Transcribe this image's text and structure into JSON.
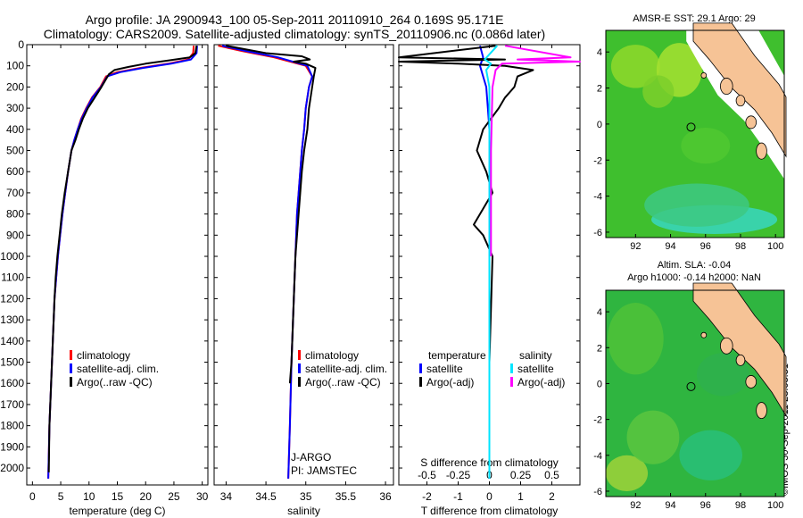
{
  "header": {
    "line1": "Argo profile: JA 2900943_100 05-Sep-2011 20110910_264 0.169S 95.171E",
    "line2": "Climatology: CARS2009. Satellite-adjusted climatology: synTS_20110906.nc (0.086d later)"
  },
  "colors": {
    "climatology": "#ff0000",
    "satellite": "#0000ff",
    "argo": "#000000",
    "salinity_satellite": "#00e5ff",
    "salinity_argo": "#ff00ff",
    "land": "#f6c396"
  },
  "chart_data": [
    {
      "type": "line",
      "name": "temperature-profile",
      "xlabel": "temperature (deg C)",
      "ylabel": "",
      "xlim": [
        -1,
        31
      ],
      "ylim": [
        2080,
        0
      ],
      "xticks": [
        0,
        5,
        10,
        15,
        20,
        25,
        30
      ],
      "yticks": [
        0,
        100,
        200,
        300,
        400,
        500,
        600,
        700,
        800,
        900,
        1000,
        1100,
        1200,
        1300,
        1400,
        1500,
        1600,
        1700,
        1800,
        1900,
        2000
      ],
      "legend": [
        "climatology",
        "satellite-adj. clim.",
        "Argo(..raw -QC)"
      ],
      "legend_position": "lower-center",
      "series": [
        {
          "name": "climatology",
          "x": [
            28.5,
            28.4,
            27.5,
            24,
            19,
            15,
            13,
            12,
            10.5,
            9.5,
            8.6,
            8,
            7.4,
            6.9,
            6.3,
            5.8,
            5.3,
            4.9,
            4.5,
            4.2,
            3.9,
            3.6,
            3.3,
            3.0,
            2.8
          ],
          "y": [
            5,
            40,
            70,
            90,
            110,
            130,
            150,
            200,
            250,
            300,
            350,
            400,
            450,
            500,
            600,
            700,
            800,
            900,
            1000,
            1100,
            1200,
            1400,
            1600,
            1800,
            2050
          ]
        },
        {
          "name": "satellite-adj. clim.",
          "x": [
            29.1,
            29,
            28,
            24.5,
            19.5,
            15.5,
            13.2,
            12.1,
            10.6,
            9.6,
            8.7,
            8,
            7.4,
            6.9,
            6.3,
            5.8,
            5.3,
            4.9,
            4.5,
            4.2,
            3.9,
            3.6,
            3.3,
            3.0,
            2.8
          ],
          "y": [
            5,
            40,
            70,
            90,
            110,
            130,
            150,
            200,
            250,
            300,
            350,
            400,
            450,
            500,
            600,
            700,
            800,
            900,
            1000,
            1100,
            1200,
            1400,
            1600,
            1800,
            2050
          ]
        },
        {
          "name": "Argo(..raw -QC)",
          "x": [
            29,
            28.8,
            27.8,
            24,
            20,
            17,
            14.5,
            13.5,
            12.2,
            11,
            9.8,
            8.9,
            8.2,
            7.6,
            6.9,
            6.3,
            5.7,
            5.2,
            4.8,
            4.4,
            4.1,
            3.9,
            3.6,
            3.3,
            3.0,
            2.9
          ],
          "y": [
            5,
            40,
            60,
            75,
            90,
            105,
            120,
            140,
            200,
            250,
            300,
            350,
            400,
            450,
            500,
            600,
            700,
            800,
            900,
            1000,
            1100,
            1200,
            1400,
            1600,
            1800,
            2020
          ]
        }
      ]
    },
    {
      "type": "line",
      "name": "salinity-profile",
      "xlabel": "salinity",
      "ylabel": "",
      "xlim": [
        33.85,
        36.1
      ],
      "ylim": [
        2080,
        0
      ],
      "xticks": [
        34,
        34.5,
        35,
        35.5,
        36
      ],
      "legend": [
        "climatology",
        "satellite-adj. clim.",
        "Argo(..raw -QC)"
      ],
      "legend_position": "lower-center",
      "annotations": [
        "J-ARGO",
        "PI: JAMSTEC"
      ],
      "series": [
        {
          "name": "climatology",
          "x": [
            33.9,
            34.2,
            34.6,
            35.0,
            35.08,
            35.04,
            35.0,
            34.98,
            34.95,
            34.93,
            34.91,
            34.89,
            34.87,
            34.85,
            34.82,
            34.8,
            34.78
          ],
          "y": [
            5,
            30,
            60,
            100,
            150,
            200,
            300,
            400,
            500,
            600,
            700,
            800,
            1000,
            1200,
            1500,
            1800,
            2050
          ]
        },
        {
          "name": "satellite-adj. clim.",
          "x": [
            33.95,
            34.25,
            34.65,
            35.02,
            35.08,
            35.04,
            35.0,
            34.98,
            34.95,
            34.93,
            34.91,
            34.89,
            34.87,
            34.85,
            34.82,
            34.8,
            34.78
          ],
          "y": [
            5,
            30,
            60,
            100,
            150,
            200,
            300,
            400,
            500,
            600,
            700,
            800,
            1000,
            1200,
            1500,
            1800,
            2050
          ]
        },
        {
          "name": "Argo(..raw -QC)",
          "x": [
            34.0,
            34.5,
            34.95,
            35.05,
            34.85,
            35.0,
            35.12,
            35.1,
            35.08,
            35.04,
            35.02,
            34.98,
            34.95,
            34.93,
            34.91,
            34.89,
            34.87,
            34.85,
            34.82,
            34.8
          ],
          "y": [
            5,
            40,
            55,
            70,
            80,
            90,
            110,
            150,
            200,
            300,
            400,
            500,
            600,
            700,
            800,
            900,
            1000,
            1200,
            1500,
            1600
          ]
        }
      ]
    },
    {
      "type": "line",
      "name": "difference-profile",
      "xlabel": "T difference from climatology",
      "xlabel_top": "S difference from climatology",
      "xlim": [
        -2.9,
        2.9
      ],
      "ylim": [
        2080,
        0
      ],
      "xticks": [
        -2,
        -1,
        0,
        1,
        2
      ],
      "xticks_s": [
        -0.5,
        -0.25,
        0,
        0.25,
        0.5
      ],
      "legend": {
        "temperature": [
          "satellite",
          "Argo(-adj)"
        ],
        "salinity": [
          "satellite",
          "Argo(-adj)"
        ]
      },
      "legend_position": "lower-center",
      "series": [
        {
          "name": "temperature satellite",
          "x": [
            -0.3,
            -0.2,
            -0.3,
            -0.2,
            -0.1,
            -0.05,
            0,
            0,
            0,
            0,
            0
          ],
          "y": [
            5,
            60,
            100,
            150,
            200,
            300,
            400,
            600,
            1000,
            1500,
            2050
          ]
        },
        {
          "name": "temperature Argo(-adj)",
          "x": [
            0.2,
            -2.9,
            0.5,
            -2.9,
            -1,
            0.5,
            1.4,
            0.9,
            0.8,
            0.5,
            0.3,
            -0.2,
            -0.4,
            -0.1,
            0.1,
            -0.3,
            -0.5,
            -0.2,
            0.1,
            0.0
          ],
          "y": [
            5,
            60,
            70,
            80,
            90,
            100,
            120,
            150,
            200,
            250,
            300,
            400,
            500,
            600,
            700,
            800,
            850,
            900,
            1000,
            1500
          ]
        },
        {
          "name": "salinity satellite",
          "x": [
            0.25,
            -0.15,
            0.05,
            -0.1,
            0,
            0,
            0,
            0
          ],
          "y": [
            5,
            70,
            90,
            120,
            200,
            500,
            1000,
            2050
          ]
        },
        {
          "name": "salinity Argo(-adj)",
          "x": [
            0.5,
            2.6,
            0.9,
            2.9,
            0.4,
            0.2,
            0.1,
            0.05,
            0.05
          ],
          "y": [
            5,
            60,
            70,
            80,
            90,
            120,
            200,
            500,
            1000
          ]
        }
      ]
    }
  ],
  "maps": [
    {
      "title": "AMSR-E SST: 29.1  Argo: 29",
      "xticks": [
        "92",
        "94",
        "96",
        "98",
        "100"
      ],
      "yticks": [
        "4",
        "2",
        "0",
        "-2",
        "-4",
        "-6"
      ],
      "marker_lon": 95.17,
      "marker_lat": -0.17
    },
    {
      "title_line1": "Altim. SLA: -0.04",
      "title_line2": "Argo h1000: -0.14 h2000: NaN",
      "xticks": [
        "92",
        "94",
        "96",
        "98",
        "100"
      ],
      "yticks": [
        "4",
        "2",
        "0",
        "-2",
        "-4",
        "-6"
      ],
      "marker_lon": 95.17,
      "marker_lat": -0.17
    }
  ],
  "credit": "©IMOS 30-Sep-2011 23:08:51"
}
